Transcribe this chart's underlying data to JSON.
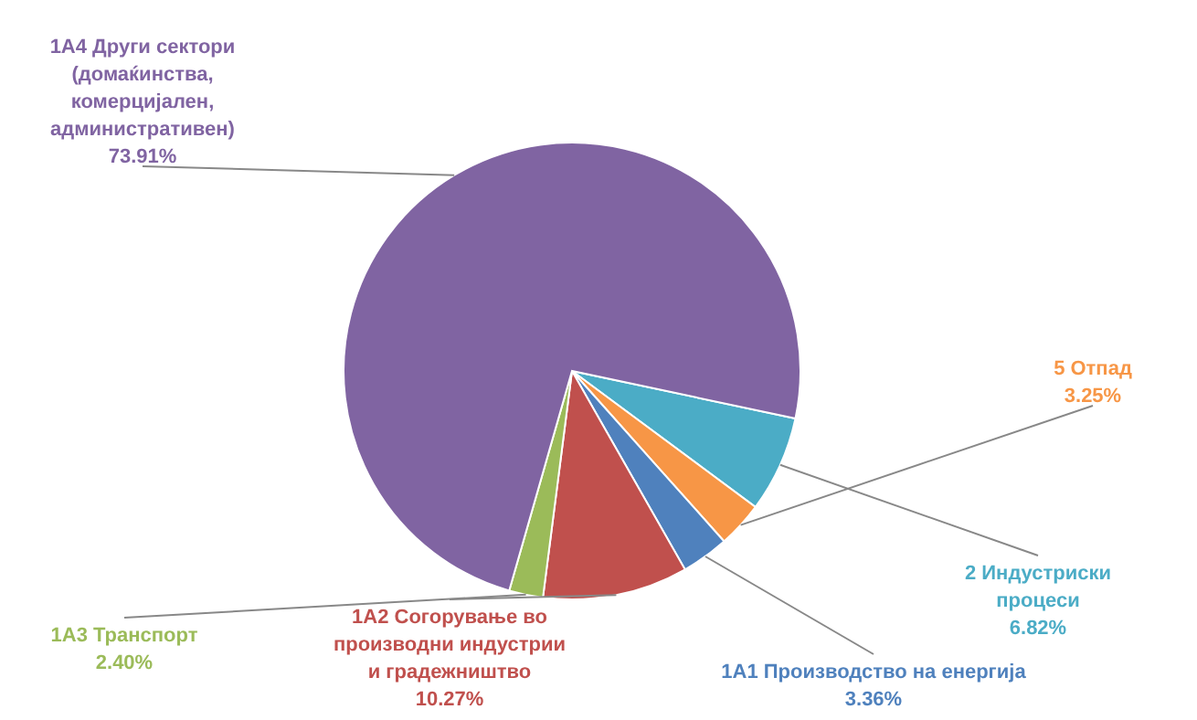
{
  "chart_data": {
    "type": "pie",
    "categories": [
      "2 Индустриски процеси",
      "5 Отпад",
      "1A1 Производство  на енергија",
      "1A2 Согорување во производни индустрии  и градежништво",
      "1A3 Транспорт",
      "1A4 Други сектори (домаќинства, комерцијален, административен)"
    ],
    "values": [
      6.82,
      3.25,
      3.36,
      10.27,
      2.4,
      73.91
    ],
    "value_labels": [
      "6.82%",
      "3.25%",
      "3.36%",
      "10.27%",
      "2.40%",
      "73.91%"
    ],
    "colors": [
      "#4bacc6",
      "#f79646",
      "#4f81bd",
      "#c0504d",
      "#9bbb59",
      "#8064a2"
    ]
  }
}
